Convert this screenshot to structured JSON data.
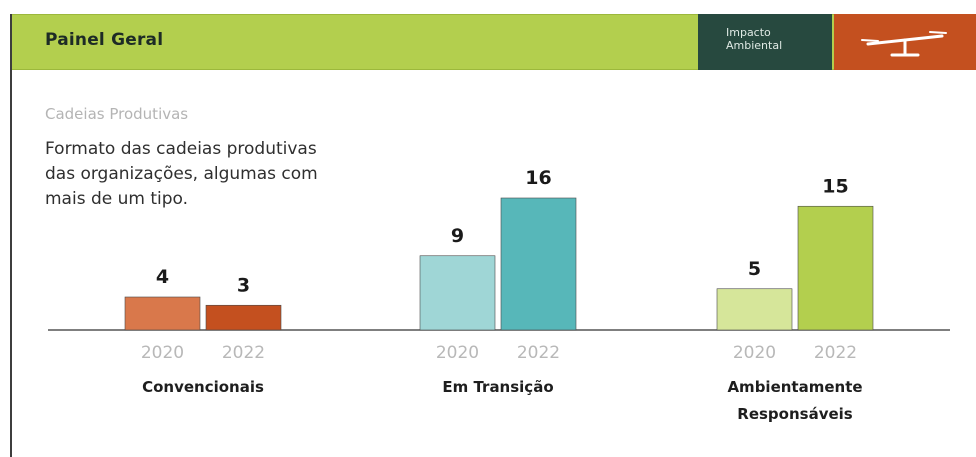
{
  "header": {
    "title": "Painel Geral",
    "tab_impact_line1": "Impacto",
    "tab_impact_line2": "Ambiental",
    "icon": "scale-icon",
    "colors": {
      "bar": "#b3cf4e",
      "tab_dark": "#27493f",
      "tab_orange": "#c4501f"
    }
  },
  "section": {
    "subtitle": "Cadeias Produtivas",
    "description_line1": "Formato das cadeias produtivas",
    "description_line2": "das organizações, algumas com",
    "description_line3": "mais de um tipo."
  },
  "chart_data": {
    "type": "bar",
    "title": "",
    "years": [
      "2020",
      "2022"
    ],
    "groups": [
      {
        "label": [
          "Convencionais"
        ],
        "values": [
          4,
          3
        ],
        "colors": [
          "#d9784b",
          "#c4501f"
        ]
      },
      {
        "label": [
          "Em Transição"
        ],
        "values": [
          9,
          16
        ],
        "colors": [
          "#9fd6d6",
          "#57b7b9"
        ]
      },
      {
        "label": [
          "Ambientamente",
          "Responsáveis"
        ],
        "values": [
          5,
          15
        ],
        "colors": [
          "#d6e69a",
          "#b3cf4e"
        ]
      }
    ],
    "ylim": [
      0,
      16
    ],
    "grid": false,
    "legend": "none"
  }
}
